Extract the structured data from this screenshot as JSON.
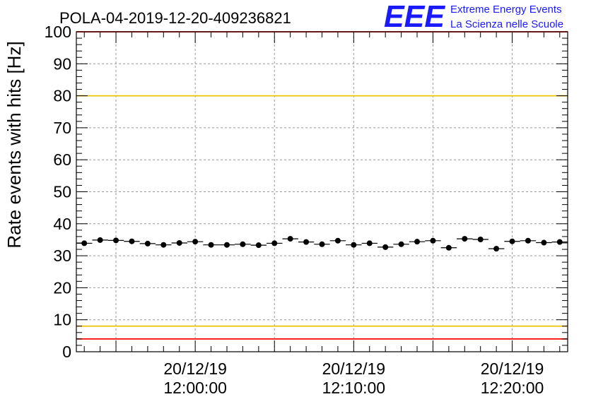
{
  "chart_data": {
    "type": "scatter",
    "title": "POLA-04-2019-12-20-409236821",
    "ylabel": "Rate events with hits [Hz]",
    "xlabel": "",
    "ylim": [
      0,
      100
    ],
    "xlim": [
      "2019-12-20 11:52:30",
      "2019-12-20 12:23:30"
    ],
    "y_ticks": [
      0,
      10,
      20,
      30,
      40,
      50,
      60,
      70,
      80,
      90,
      100
    ],
    "x_ticks": [
      {
        "date": "20/12/19",
        "time": "12:00:00",
        "at": "2019-12-20 12:00:00"
      },
      {
        "date": "20/12/19",
        "time": "12:10:00",
        "at": "2019-12-20 12:10:00"
      },
      {
        "date": "20/12/19",
        "time": "12:20:00",
        "at": "2019-12-20 12:20:00"
      }
    ],
    "grid": true,
    "logo": {
      "text": "EEE",
      "line1": "Extreme Energy Events",
      "line2": "La Scienza nelle Scuole",
      "color": "#1a1aff"
    },
    "reference_lines": [
      {
        "y": 100,
        "color": "#ff0000"
      },
      {
        "y": 80,
        "color": "#f2c200"
      },
      {
        "y": 8,
        "color": "#f2c200"
      },
      {
        "y": 4,
        "color": "#ff0000"
      }
    ],
    "series": [
      {
        "bin_width_min": 1,
        "x": [
          "2019-12-20 11:53:00",
          "2019-12-20 11:54:00",
          "2019-12-20 11:55:00",
          "2019-12-20 11:56:00",
          "2019-12-20 11:57:00",
          "2019-12-20 11:58:00",
          "2019-12-20 11:59:00",
          "2019-12-20 12:00:00",
          "2019-12-20 12:01:00",
          "2019-12-20 12:02:00",
          "2019-12-20 12:03:00",
          "2019-12-20 12:04:00",
          "2019-12-20 12:05:00",
          "2019-12-20 12:06:00",
          "2019-12-20 12:07:00",
          "2019-12-20 12:08:00",
          "2019-12-20 12:09:00",
          "2019-12-20 12:10:00",
          "2019-12-20 12:11:00",
          "2019-12-20 12:12:00",
          "2019-12-20 12:13:00",
          "2019-12-20 12:14:00",
          "2019-12-20 12:15:00",
          "2019-12-20 12:16:00",
          "2019-12-20 12:17:00",
          "2019-12-20 12:18:00",
          "2019-12-20 12:19:00",
          "2019-12-20 12:20:00",
          "2019-12-20 12:21:00",
          "2019-12-20 12:22:00",
          "2019-12-20 12:23:00"
        ],
        "y": [
          33.9,
          34.9,
          34.8,
          34.5,
          33.8,
          33.4,
          34.0,
          34.4,
          33.4,
          33.4,
          33.6,
          33.3,
          33.9,
          35.3,
          34.3,
          33.6,
          34.7,
          33.4,
          33.9,
          32.7,
          33.6,
          34.4,
          34.7,
          32.5,
          35.3,
          35.1,
          32.2,
          34.5,
          34.7,
          34.1,
          34.3
        ],
        "color": "#000000"
      }
    ]
  }
}
